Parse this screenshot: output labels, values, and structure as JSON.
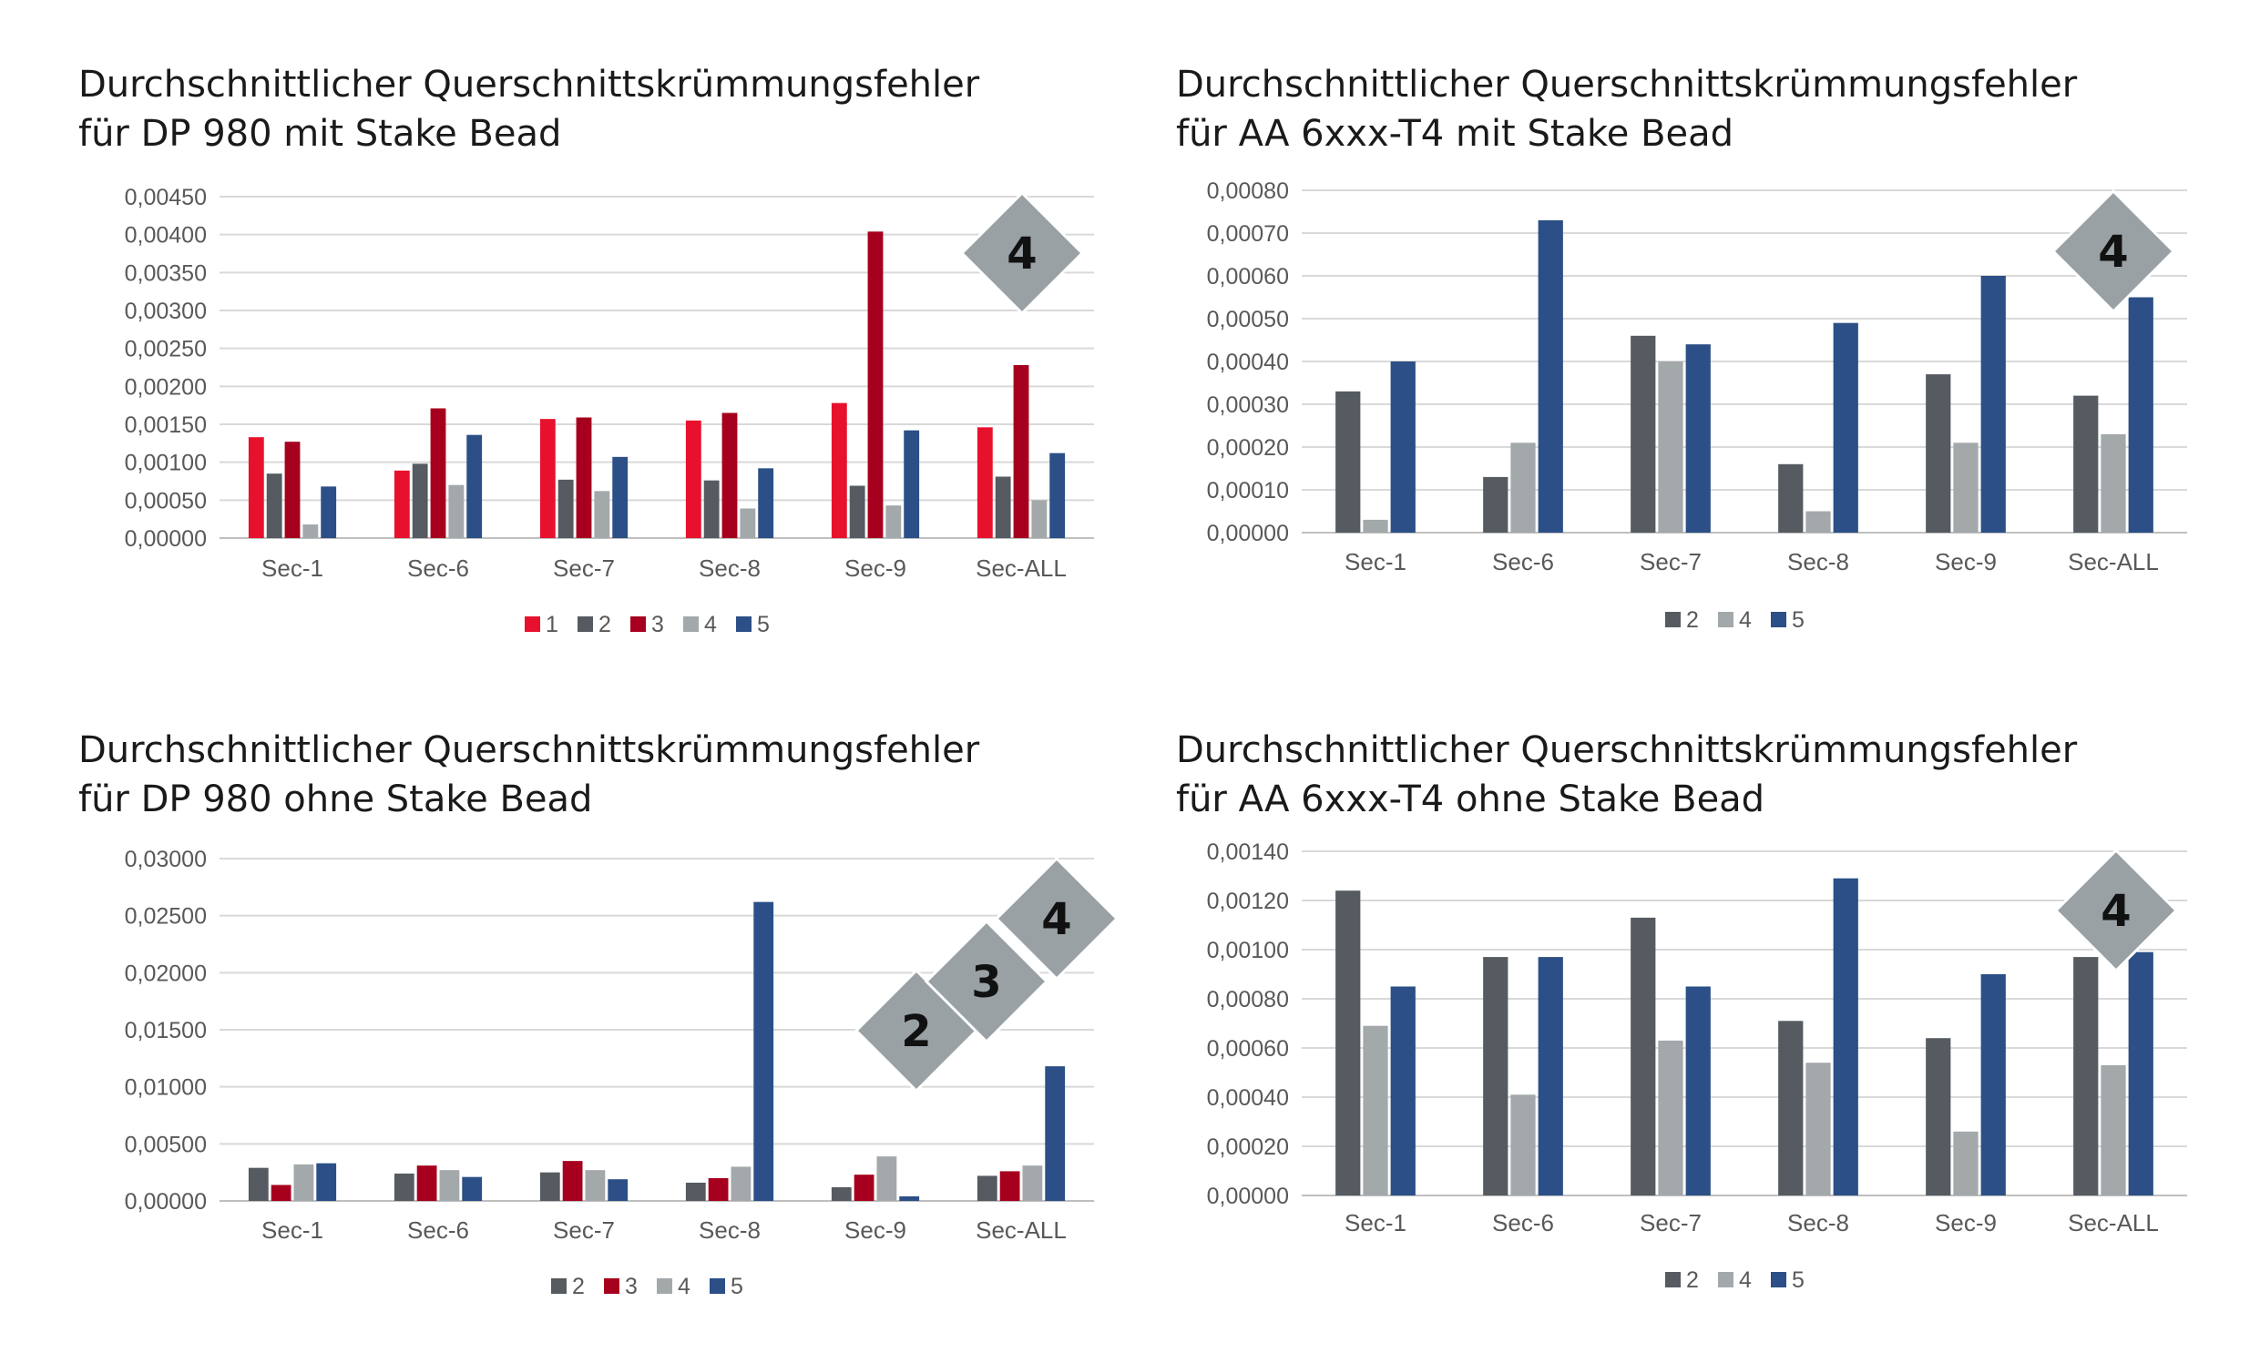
{
  "colors": {
    "1": "#e8112d",
    "2": "#555b60",
    "3": "#a6001e",
    "4": "#a3a8ab",
    "5": "#2b4f86",
    "grid": "#d9d9d9",
    "axis": "#bfbfbf",
    "badge": "#99a1a5"
  },
  "chart_data": [
    {
      "type": "bar",
      "title": "Durchschnittlicher Querschnittskrümmungsfehler\nfür DP 980 mit Stake Bead",
      "categories": [
        "Sec-1",
        "Sec-6",
        "Sec-7",
        "Sec-8",
        "Sec-9",
        "Sec-ALL"
      ],
      "ylim": [
        0,
        0.0045
      ],
      "yticks": [
        "0,00000",
        "0,00050",
        "0,00100",
        "0,00150",
        "0,00200",
        "0,00250",
        "0,00300",
        "0,00350",
        "0,00400",
        "0,00450"
      ],
      "ytick_step": 0.0005,
      "grid": true,
      "legend": "bottom",
      "series": [
        {
          "name": "1",
          "color_key": "1",
          "values": [
            0.00133,
            0.00089,
            0.00157,
            0.00155,
            0.00178,
            0.00146
          ]
        },
        {
          "name": "2",
          "color_key": "2",
          "values": [
            0.00085,
            0.00098,
            0.00077,
            0.00076,
            0.00069,
            0.00081
          ]
        },
        {
          "name": "3",
          "color_key": "3",
          "values": [
            0.00127,
            0.00171,
            0.00159,
            0.00165,
            0.00404,
            0.00228
          ]
        },
        {
          "name": "4",
          "color_key": "4",
          "values": [
            0.00018,
            0.0007,
            0.00062,
            0.00039,
            0.00043,
            0.0005
          ]
        },
        {
          "name": "5",
          "color_key": "5",
          "values": [
            0.00068,
            0.00136,
            0.00107,
            0.00092,
            0.00142,
            0.00112
          ]
        }
      ],
      "badges": [
        "4"
      ]
    },
    {
      "type": "bar",
      "title": "Durchschnittlicher Querschnittskrümmungsfehler\nfür AA 6xxx-T4 mit Stake Bead",
      "categories": [
        "Sec-1",
        "Sec-6",
        "Sec-7",
        "Sec-8",
        "Sec-9",
        "Sec-ALL"
      ],
      "ylim": [
        0,
        0.0008
      ],
      "yticks": [
        "0,00000",
        "0,00010",
        "0,00020",
        "0,00030",
        "0,00040",
        "0,00050",
        "0,00060",
        "0,00070",
        "0,00080"
      ],
      "ytick_step": 0.0001,
      "grid": true,
      "legend": "bottom",
      "series": [
        {
          "name": "2",
          "color_key": "2",
          "values": [
            0.00033,
            0.00013,
            0.00046,
            0.00016,
            0.00037,
            0.00032
          ]
        },
        {
          "name": "4",
          "color_key": "4",
          "values": [
            3e-05,
            0.00021,
            0.0004,
            5e-05,
            0.00021,
            0.00023
          ]
        },
        {
          "name": "5",
          "color_key": "5",
          "values": [
            0.0004,
            0.00073,
            0.00044,
            0.00049,
            0.0006,
            0.00055
          ]
        }
      ],
      "badges": [
        "4"
      ]
    },
    {
      "type": "bar",
      "title": "Durchschnittlicher Querschnittskrümmungsfehler\nfür DP 980 ohne Stake Bead",
      "categories": [
        "Sec-1",
        "Sec-6",
        "Sec-7",
        "Sec-8",
        "Sec-9",
        "Sec-ALL"
      ],
      "ylim": [
        0,
        0.03
      ],
      "yticks": [
        "0,00000",
        "0,00500",
        "0,01000",
        "0,01500",
        "0,02000",
        "0,02500",
        "0,03000"
      ],
      "ytick_step": 0.005,
      "grid": true,
      "legend": "bottom",
      "series": [
        {
          "name": "2",
          "color_key": "2",
          "values": [
            0.0029,
            0.0024,
            0.0025,
            0.0016,
            0.0012,
            0.0022
          ]
        },
        {
          "name": "3",
          "color_key": "3",
          "values": [
            0.0014,
            0.0031,
            0.0035,
            0.002,
            0.0023,
            0.0026
          ]
        },
        {
          "name": "4",
          "color_key": "4",
          "values": [
            0.0032,
            0.0027,
            0.0027,
            0.003,
            0.0039,
            0.0031
          ]
        },
        {
          "name": "5",
          "color_key": "5",
          "values": [
            0.0033,
            0.0021,
            0.0019,
            0.0262,
            0.0004,
            0.0118
          ]
        }
      ],
      "badges": [
        "2",
        "3",
        "4"
      ]
    },
    {
      "type": "bar",
      "title": "Durchschnittlicher Querschnittskrümmungsfehler\nfür AA 6xxx-T4 ohne Stake Bead",
      "categories": [
        "Sec-1",
        "Sec-6",
        "Sec-7",
        "Sec-8",
        "Sec-9",
        "Sec-ALL"
      ],
      "ylim": [
        0,
        0.0014
      ],
      "yticks": [
        "0,00000",
        "0,00020",
        "0,00040",
        "0,00060",
        "0,00080",
        "0,00100",
        "0,00120",
        "0,00140"
      ],
      "ytick_step": 0.0002,
      "grid": true,
      "legend": "bottom",
      "series": [
        {
          "name": "2",
          "color_key": "2",
          "values": [
            0.00124,
            0.00097,
            0.00113,
            0.00071,
            0.00064,
            0.00097
          ]
        },
        {
          "name": "4",
          "color_key": "4",
          "values": [
            0.00069,
            0.00041,
            0.00063,
            0.00054,
            0.00026,
            0.00053
          ]
        },
        {
          "name": "5",
          "color_key": "5",
          "values": [
            0.00085,
            0.00097,
            0.00085,
            0.00129,
            0.0009,
            0.00099
          ]
        }
      ],
      "badges": [
        "4"
      ]
    }
  ]
}
